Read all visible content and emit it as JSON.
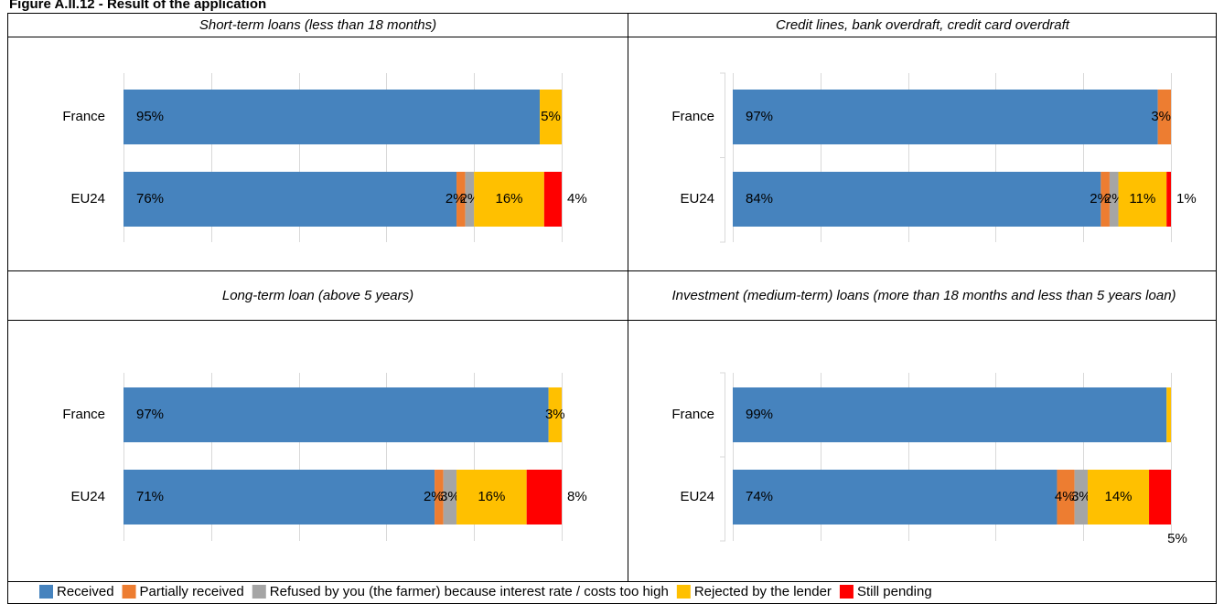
{
  "figure_title": "Figure A.II.12 - Result of the application",
  "chart_data": [
    {
      "type": "bar",
      "orientation": "horizontal",
      "stacked": true,
      "title": "Short-term loans (less than 18 months)",
      "categories": [
        "France",
        "EU24"
      ],
      "xlim": [
        0,
        100
      ],
      "xticks": [
        0,
        20,
        40,
        60,
        80,
        100
      ],
      "grid": true,
      "series": [
        {
          "name": "Received",
          "color": "#4683be",
          "values": [
            95,
            76
          ],
          "value_labels": [
            "95%",
            "76%"
          ]
        },
        {
          "name": "Partially received",
          "color": "#ed7d31",
          "values": [
            null,
            2
          ],
          "value_labels": [
            null,
            "2%"
          ]
        },
        {
          "name": "Refused by you (the farmer) because interest rate / costs too high",
          "color": "#a5a5a5",
          "values": [
            null,
            2
          ],
          "value_labels": [
            null,
            "2%"
          ]
        },
        {
          "name": "Rejected by the lender",
          "color": "#ffc000",
          "values": [
            5,
            16
          ],
          "value_labels": [
            "5%",
            "16%"
          ]
        },
        {
          "name": "Still pending",
          "color": "#ff0000",
          "values": [
            null,
            4
          ],
          "value_labels": [
            null,
            "4%"
          ]
        }
      ]
    },
    {
      "type": "bar",
      "orientation": "horizontal",
      "stacked": true,
      "title": "Credit lines, bank overdraft, credit card overdraft",
      "categories": [
        "France",
        "EU24"
      ],
      "xlim": [
        0,
        100
      ],
      "xticks": [
        0,
        20,
        40,
        60,
        80,
        100
      ],
      "grid": true,
      "series": [
        {
          "name": "Received",
          "color": "#4683be",
          "values": [
            97,
            84
          ],
          "value_labels": [
            "97%",
            "84%"
          ]
        },
        {
          "name": "Partially received",
          "color": "#ed7d31",
          "values": [
            3,
            2
          ],
          "value_labels": [
            "3%",
            "2%"
          ]
        },
        {
          "name": "Refused by you (the farmer) because interest rate / costs too high",
          "color": "#a5a5a5",
          "values": [
            null,
            2
          ],
          "value_labels": [
            null,
            "2%"
          ]
        },
        {
          "name": "Rejected by the lender",
          "color": "#ffc000",
          "values": [
            null,
            11
          ],
          "value_labels": [
            null,
            "11%"
          ]
        },
        {
          "name": "Still pending",
          "color": "#ff0000",
          "values": [
            null,
            1
          ],
          "value_labels": [
            null,
            "1%"
          ]
        }
      ]
    },
    {
      "type": "bar",
      "orientation": "horizontal",
      "stacked": true,
      "title": "Long-term loan (above 5 years)",
      "categories": [
        "France",
        "EU24"
      ],
      "xlim": [
        0,
        100
      ],
      "xticks": [
        0,
        20,
        40,
        60,
        80,
        100
      ],
      "grid": true,
      "series": [
        {
          "name": "Received",
          "color": "#4683be",
          "values": [
            97,
            71
          ],
          "value_labels": [
            "97%",
            "71%"
          ]
        },
        {
          "name": "Partially received",
          "color": "#ed7d31",
          "values": [
            null,
            2
          ],
          "value_labels": [
            null,
            "2%"
          ]
        },
        {
          "name": "Refused by you (the farmer) because interest rate / costs too high",
          "color": "#a5a5a5",
          "values": [
            null,
            3
          ],
          "value_labels": [
            null,
            "3%"
          ]
        },
        {
          "name": "Rejected by the lender",
          "color": "#ffc000",
          "values": [
            3,
            16
          ],
          "value_labels": [
            "3%",
            "16%"
          ]
        },
        {
          "name": "Still pending",
          "color": "#ff0000",
          "values": [
            null,
            8
          ],
          "value_labels": [
            null,
            "8%"
          ]
        }
      ]
    },
    {
      "type": "bar",
      "orientation": "horizontal",
      "stacked": true,
      "title": "Investment (medium-term) loans (more than 18 months and less than 5 years loan)",
      "categories": [
        "France",
        "EU24"
      ],
      "xlim": [
        0,
        100
      ],
      "xticks": [
        0,
        20,
        40,
        60,
        80,
        100
      ],
      "grid": true,
      "series": [
        {
          "name": "Received",
          "color": "#4683be",
          "values": [
            99,
            74
          ],
          "value_labels": [
            "99%",
            "74%"
          ]
        },
        {
          "name": "Partially received",
          "color": "#ed7d31",
          "values": [
            null,
            4
          ],
          "value_labels": [
            null,
            "4%"
          ]
        },
        {
          "name": "Refused by you (the farmer) because interest rate / costs too high",
          "color": "#a5a5a5",
          "values": [
            null,
            3
          ],
          "value_labels": [
            null,
            "3%"
          ]
        },
        {
          "name": "Rejected by the lender",
          "color": "#ffc000",
          "values": [
            1,
            14
          ],
          "value_labels": [
            null,
            "14%"
          ]
        },
        {
          "name": "Still pending",
          "color": "#ff0000",
          "values": [
            null,
            5
          ],
          "value_labels": [
            null,
            "5%"
          ]
        }
      ]
    }
  ]
}
